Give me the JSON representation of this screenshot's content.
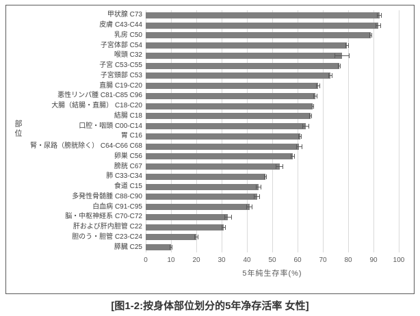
{
  "figure": {
    "caption": "[图1-2:按身体部位划分的5年净存活率 女性]"
  },
  "chart_data": {
    "type": "bar",
    "orientation": "horizontal",
    "title": "",
    "xlabel": "5年純生存率(%)",
    "ylabel": "部位",
    "xlim": [
      0,
      100
    ],
    "xticks": [
      0,
      10,
      20,
      30,
      40,
      50,
      60,
      70,
      80,
      90,
      100
    ],
    "grid": true,
    "legend": "none",
    "bar_color": "#7f7f7f",
    "error_color": "#595959",
    "grid_color": "#d9d9d9",
    "categories": [
      "甲状腺 C73",
      "皮膚 C43-C44",
      "乳房 C50",
      "子宮体部 C54",
      "喉頭 C32",
      "子宮 C53-C55",
      "子宮頸部 C53",
      "直腸 C19-C20",
      "悪性リンパ腫 C81-C85 C96",
      "大腸（結腸・直腸） C18-C20",
      "結腸 C18",
      "口腔・咽頭 C00-C14",
      "胃 C16",
      "腎・尿路（膀胱除く） C64-C66 C68",
      "卵巣 C56",
      "膀胱 C67",
      "肺 C33-C34",
      "食道 C15",
      "多発性骨髄腫 C88-C90",
      "白血病 C91-C95",
      "脳・中枢神経系 C70-C72",
      "肝および肝内胆管 C22",
      "胆のう・胆管 C23-C24",
      "膵臓 C25"
    ],
    "values": [
      92.3,
      91.9,
      89.0,
      79.5,
      77.5,
      76.4,
      73.0,
      68.0,
      67.0,
      66.0,
      65.2,
      63.2,
      61.0,
      60.6,
      58.0,
      52.9,
      47.3,
      44.6,
      44.0,
      41.0,
      32.5,
      30.8,
      19.9,
      10.0
    ],
    "errors": [
      1.0,
      1.2,
      0.5,
      0.7,
      3.0,
      0.5,
      0.8,
      0.8,
      0.8,
      0.4,
      0.5,
      1.3,
      0.6,
      1.2,
      0.8,
      1.5,
      0.6,
      1.2,
      1.2,
      1.2,
      1.5,
      0.7,
      0.8,
      0.5
    ]
  }
}
